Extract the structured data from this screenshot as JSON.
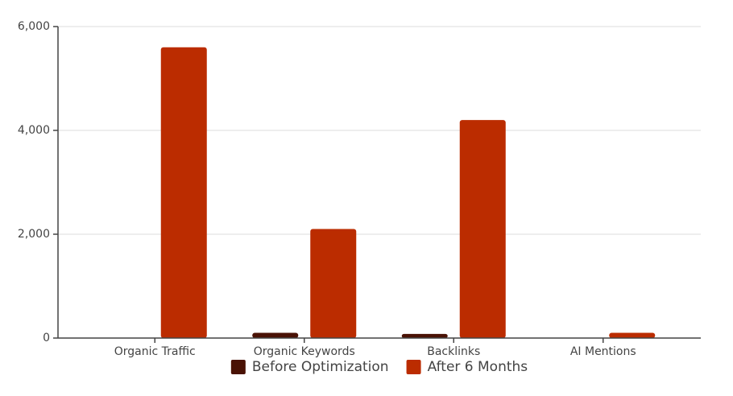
{
  "chart_data": {
    "type": "bar",
    "categories": [
      "Organic Traffic",
      "Organic Keywords",
      "Backlinks",
      "AI Mentions"
    ],
    "series": [
      {
        "name": "Before Optimization",
        "color": "#4a1205",
        "values": [
          0,
          100,
          80,
          0
        ]
      },
      {
        "name": "After 6 Months",
        "color": "#bb2c00",
        "values": [
          5600,
          2100,
          4200,
          100
        ]
      }
    ],
    "ylim": [
      0,
      6000
    ],
    "yticks": [
      0,
      {
        "value": 2000,
        "label": "2,000"
      },
      {
        "value": 4000,
        "label": "4,000"
      },
      {
        "value": 6000,
        "label": "6,000"
      }
    ],
    "grid": true,
    "legend": "bottom"
  }
}
